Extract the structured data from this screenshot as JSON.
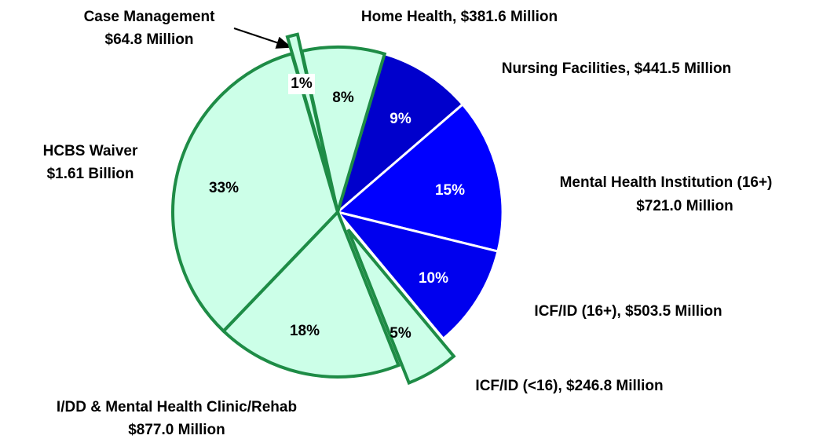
{
  "chart_data": {
    "type": "pie",
    "categories": [
      [
        "Case Management",
        "$64.8 Million"
      ],
      [
        "Home Health, $381.6 Million"
      ],
      [
        "Nursing Facilities, $441.5 Million"
      ],
      [
        "Mental Health Institution (16+)",
        "$721.0 Million"
      ],
      [
        "ICF/ID (16+), $503.5 Million"
      ],
      [
        "ICF/ID (<16), $246.8 Million"
      ],
      [
        "I/DD & Mental Health Clinic/Rehab",
        "$877.0 Million"
      ],
      [
        "HCBS Waiver",
        "$1.61 Billion"
      ]
    ],
    "values": [
      1,
      8,
      9,
      15,
      10,
      5,
      18,
      33
    ],
    "value_labels": [
      "1%",
      "8%",
      "9%",
      "15%",
      "10%",
      "5%",
      "18%",
      "33%"
    ],
    "colors": [
      "#ccffe8",
      "#ccffe8",
      "#0000cc",
      "#0000ff",
      "#0000ee",
      "#ccffe8",
      "#ccffe8",
      "#ccffe8"
    ]
  }
}
